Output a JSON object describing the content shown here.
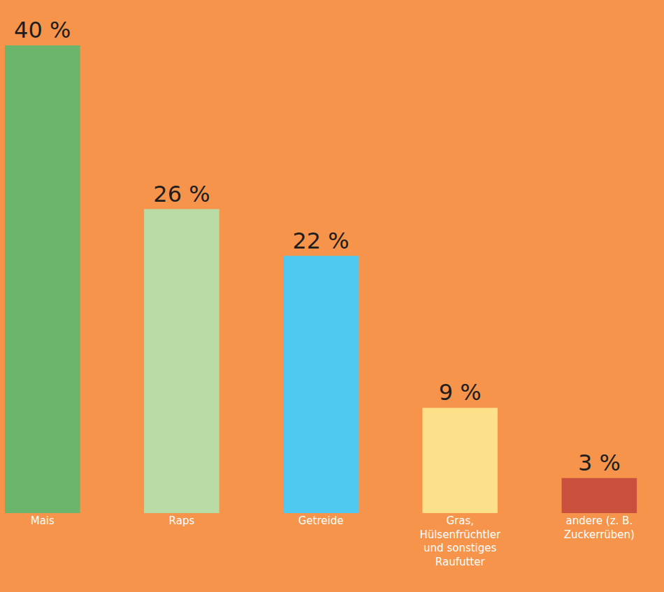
{
  "chart_data": {
    "type": "bar",
    "categories": [
      "Mais",
      "Raps",
      "Getreide",
      "Gras, Hülsenfrüchtler und sonstiges Raufutter",
      "andere (z. B. Zuckerrüben)"
    ],
    "values": [
      40,
      26,
      22,
      9,
      3
    ],
    "value_labels": [
      "40 %",
      "26 %",
      "22 %",
      "9 %",
      "3 %"
    ],
    "colors": [
      "#6ab46c",
      "#b9dca6",
      "#4fc8f0",
      "#fde08a",
      "#c8503c"
    ],
    "ylim": [
      0,
      40
    ],
    "data_labels": true,
    "tick_labels": "x",
    "grid": false
  }
}
